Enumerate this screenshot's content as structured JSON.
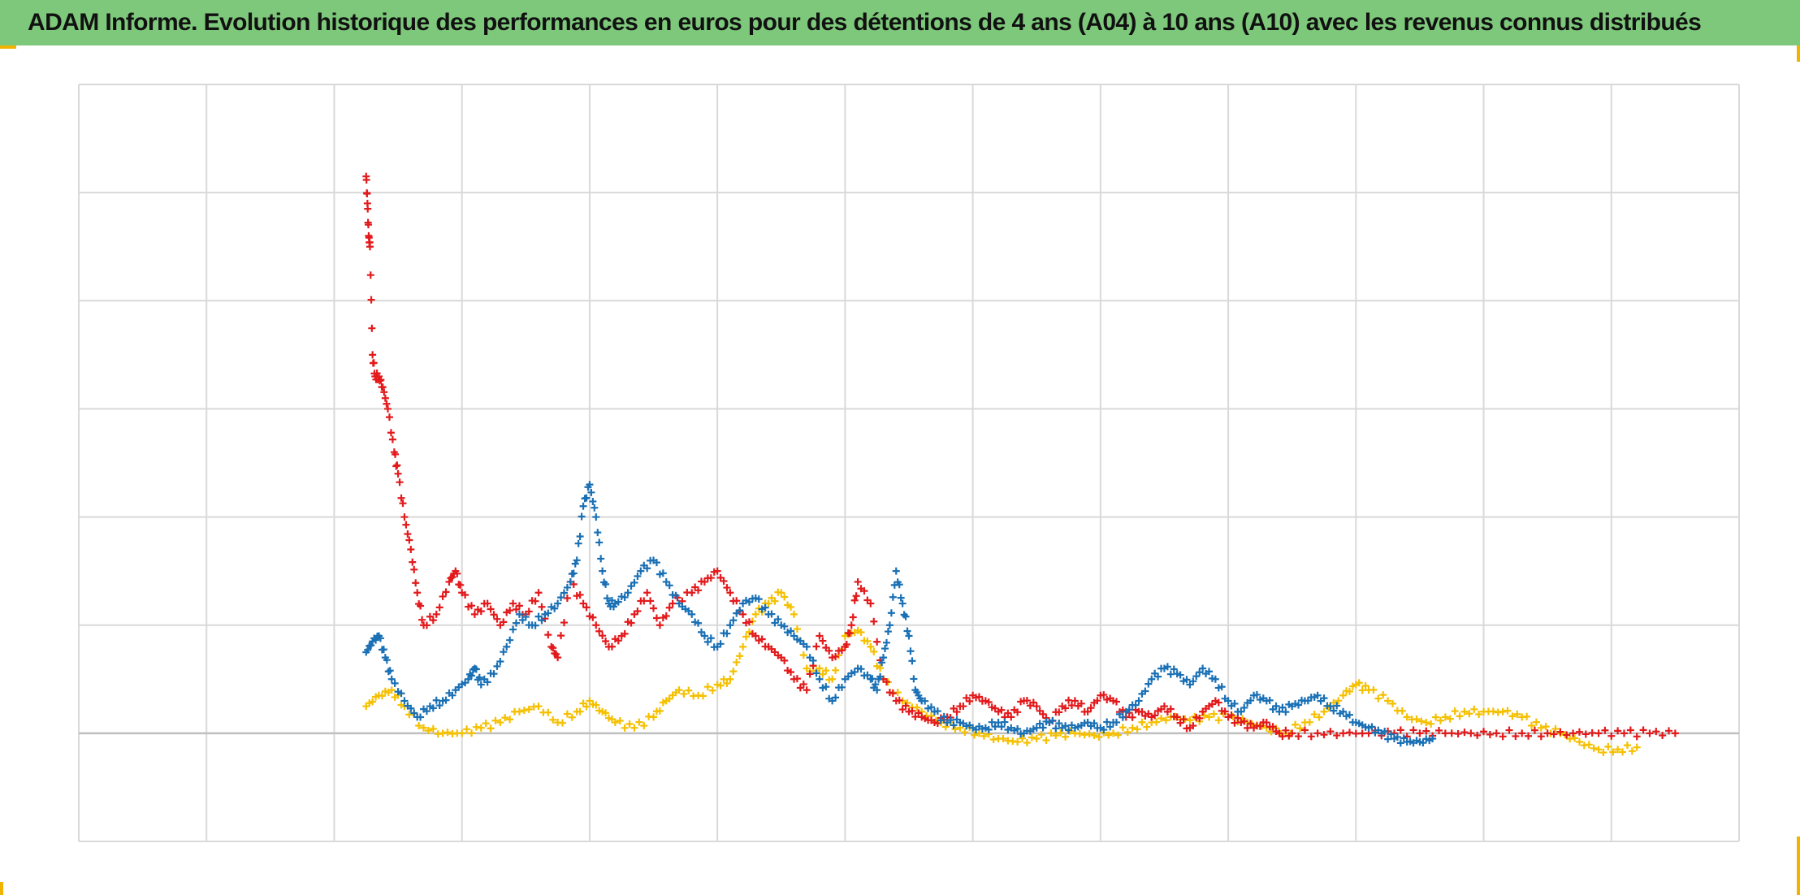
{
  "header": {
    "title": "ADAM Informe. Evolution historique des performances en euros pour des détentions de 4 ans (A04) à 10 ans (A10) avec les revenus connus distribués"
  },
  "colors": {
    "header_bg": "#7dc87a",
    "grid": "#d9d9d9",
    "zero_line": "#bfbfbf",
    "accent_corner": "#f0b400"
  },
  "chart_data": {
    "type": "scatter",
    "marker": "plus",
    "grid": true,
    "x_divisions": 13,
    "y_divisions": 7,
    "xlim": [
      0,
      13
    ],
    "ylim": [
      -1,
      6
    ],
    "zero_line": 0,
    "series": [
      {
        "color": "#f5c000",
        "points": [
          [
            2.25,
            0.25
          ],
          [
            2.35,
            0.35
          ],
          [
            2.45,
            0.4
          ],
          [
            2.55,
            0.25
          ],
          [
            2.7,
            0.05
          ],
          [
            2.85,
            0.0
          ],
          [
            3.0,
            0.0
          ],
          [
            3.15,
            0.05
          ],
          [
            3.3,
            0.1
          ],
          [
            3.45,
            0.2
          ],
          [
            3.6,
            0.25
          ],
          [
            3.75,
            0.1
          ],
          [
            3.9,
            0.2
          ],
          [
            4.0,
            0.3
          ],
          [
            4.1,
            0.2
          ],
          [
            4.2,
            0.1
          ],
          [
            4.35,
            0.05
          ],
          [
            4.5,
            0.15
          ],
          [
            4.6,
            0.3
          ],
          [
            4.7,
            0.4
          ],
          [
            4.85,
            0.35
          ],
          [
            5.0,
            0.45
          ],
          [
            5.1,
            0.5
          ],
          [
            5.2,
            0.8
          ],
          [
            5.3,
            1.1
          ],
          [
            5.4,
            1.2
          ],
          [
            5.5,
            1.3
          ],
          [
            5.6,
            1.1
          ],
          [
            5.7,
            0.6
          ],
          [
            5.8,
            0.6
          ],
          [
            5.9,
            0.5
          ],
          [
            6.0,
            0.9
          ],
          [
            6.1,
            0.95
          ],
          [
            6.2,
            0.8
          ],
          [
            6.3,
            0.5
          ],
          [
            6.45,
            0.3
          ],
          [
            6.6,
            0.2
          ],
          [
            6.75,
            0.1
          ],
          [
            6.9,
            0.05
          ],
          [
            7.05,
            0.0
          ],
          [
            7.2,
            -0.05
          ],
          [
            7.35,
            -0.08
          ],
          [
            7.5,
            -0.05
          ],
          [
            7.65,
            -0.02
          ],
          [
            7.8,
            0.0
          ],
          [
            7.95,
            -0.02
          ],
          [
            8.1,
            0.0
          ],
          [
            8.25,
            0.05
          ],
          [
            8.4,
            0.1
          ],
          [
            8.55,
            0.15
          ],
          [
            8.7,
            0.12
          ],
          [
            8.85,
            0.15
          ],
          [
            9.0,
            0.15
          ],
          [
            9.15,
            0.1
          ],
          [
            9.3,
            0.05
          ],
          [
            9.45,
            0.0
          ],
          [
            9.6,
            0.1
          ],
          [
            9.75,
            0.2
          ],
          [
            9.9,
            0.35
          ],
          [
            10.0,
            0.45
          ],
          [
            10.1,
            0.4
          ],
          [
            10.25,
            0.3
          ],
          [
            10.4,
            0.15
          ],
          [
            10.55,
            0.1
          ],
          [
            10.7,
            0.15
          ],
          [
            10.85,
            0.2
          ],
          [
            11.0,
            0.2
          ],
          [
            11.15,
            0.2
          ],
          [
            11.3,
            0.15
          ],
          [
            11.45,
            0.05
          ],
          [
            11.6,
            0.0
          ],
          [
            11.75,
            -0.08
          ],
          [
            11.9,
            -0.15
          ],
          [
            12.05,
            -0.15
          ],
          [
            12.2,
            -0.13
          ]
        ]
      },
      {
        "color": "#e31a1c",
        "points": [
          [
            2.25,
            5.15
          ],
          [
            2.26,
            4.9
          ],
          [
            2.27,
            4.6
          ],
          [
            2.28,
            4.5
          ],
          [
            2.3,
            3.5
          ],
          [
            2.32,
            3.3
          ],
          [
            2.35,
            3.3
          ],
          [
            2.38,
            3.2
          ],
          [
            2.42,
            3.0
          ],
          [
            2.47,
            2.6
          ],
          [
            2.5,
            2.4
          ],
          [
            2.55,
            2.0
          ],
          [
            2.6,
            1.7
          ],
          [
            2.65,
            1.3
          ],
          [
            2.7,
            1.0
          ],
          [
            2.8,
            1.1
          ],
          [
            2.9,
            1.4
          ],
          [
            2.95,
            1.5
          ],
          [
            3.0,
            1.3
          ],
          [
            3.1,
            1.1
          ],
          [
            3.2,
            1.2
          ],
          [
            3.3,
            1.0
          ],
          [
            3.4,
            1.2
          ],
          [
            3.5,
            1.1
          ],
          [
            3.6,
            1.3
          ],
          [
            3.7,
            0.8
          ],
          [
            3.75,
            0.7
          ],
          [
            3.85,
            1.4
          ],
          [
            3.95,
            1.2
          ],
          [
            4.05,
            1.0
          ],
          [
            4.15,
            0.8
          ],
          [
            4.25,
            0.9
          ],
          [
            4.35,
            1.1
          ],
          [
            4.45,
            1.3
          ],
          [
            4.55,
            1.0
          ],
          [
            4.65,
            1.2
          ],
          [
            4.8,
            1.3
          ],
          [
            4.9,
            1.4
          ],
          [
            5.0,
            1.5
          ],
          [
            5.1,
            1.3
          ],
          [
            5.2,
            1.1
          ],
          [
            5.3,
            0.9
          ],
          [
            5.4,
            0.8
          ],
          [
            5.5,
            0.7
          ],
          [
            5.6,
            0.5
          ],
          [
            5.7,
            0.4
          ],
          [
            5.8,
            0.9
          ],
          [
            5.9,
            0.7
          ],
          [
            6.0,
            0.8
          ],
          [
            6.05,
            1.0
          ],
          [
            6.1,
            1.4
          ],
          [
            6.2,
            1.2
          ],
          [
            6.3,
            0.5
          ],
          [
            6.4,
            0.3
          ],
          [
            6.5,
            0.2
          ],
          [
            6.6,
            0.15
          ],
          [
            6.7,
            0.1
          ],
          [
            6.8,
            0.15
          ],
          [
            6.9,
            0.25
          ],
          [
            7.0,
            0.35
          ],
          [
            7.1,
            0.3
          ],
          [
            7.2,
            0.2
          ],
          [
            7.3,
            0.15
          ],
          [
            7.4,
            0.3
          ],
          [
            7.5,
            0.25
          ],
          [
            7.6,
            0.1
          ],
          [
            7.7,
            0.25
          ],
          [
            7.8,
            0.3
          ],
          [
            7.9,
            0.2
          ],
          [
            8.0,
            0.35
          ],
          [
            8.1,
            0.3
          ],
          [
            8.2,
            0.15
          ],
          [
            8.3,
            0.2
          ],
          [
            8.4,
            0.15
          ],
          [
            8.5,
            0.25
          ],
          [
            8.6,
            0.15
          ],
          [
            8.7,
            0.05
          ],
          [
            8.8,
            0.2
          ],
          [
            8.9,
            0.3
          ],
          [
            9.0,
            0.15
          ],
          [
            9.1,
            0.1
          ],
          [
            9.2,
            0.05
          ],
          [
            9.3,
            0.1
          ],
          [
            9.4,
            0.0
          ],
          [
            9.5,
            0.0
          ],
          [
            9.7,
            0.0
          ],
          [
            9.9,
            0.0
          ],
          [
            10.1,
            0.0
          ],
          [
            10.3,
            0.0
          ],
          [
            10.5,
            0.0
          ],
          [
            10.7,
            0.0
          ],
          [
            10.9,
            0.0
          ],
          [
            11.1,
            0.0
          ],
          [
            11.3,
            0.0
          ],
          [
            11.5,
            0.0
          ],
          [
            11.7,
            0.0
          ],
          [
            11.9,
            0.0
          ],
          [
            12.1,
            0.0
          ],
          [
            12.3,
            0.0
          ],
          [
            12.5,
            0.0
          ]
        ]
      },
      {
        "color": "#1a70b5",
        "points": [
          [
            2.25,
            0.75
          ],
          [
            2.3,
            0.85
          ],
          [
            2.35,
            0.9
          ],
          [
            2.4,
            0.7
          ],
          [
            2.45,
            0.5
          ],
          [
            2.55,
            0.3
          ],
          [
            2.65,
            0.15
          ],
          [
            2.75,
            0.25
          ],
          [
            2.85,
            0.3
          ],
          [
            2.95,
            0.4
          ],
          [
            3.05,
            0.5
          ],
          [
            3.1,
            0.6
          ],
          [
            3.15,
            0.45
          ],
          [
            3.25,
            0.55
          ],
          [
            3.35,
            0.8
          ],
          [
            3.45,
            1.1
          ],
          [
            3.55,
            1.0
          ],
          [
            3.65,
            1.1
          ],
          [
            3.75,
            1.2
          ],
          [
            3.85,
            1.4
          ],
          [
            3.9,
            1.6
          ],
          [
            3.95,
            2.1
          ],
          [
            4.0,
            2.3
          ],
          [
            4.05,
            2.0
          ],
          [
            4.1,
            1.5
          ],
          [
            4.15,
            1.2
          ],
          [
            4.2,
            1.2
          ],
          [
            4.3,
            1.3
          ],
          [
            4.4,
            1.5
          ],
          [
            4.5,
            1.6
          ],
          [
            4.6,
            1.4
          ],
          [
            4.7,
            1.2
          ],
          [
            4.8,
            1.1
          ],
          [
            4.9,
            0.9
          ],
          [
            5.0,
            0.8
          ],
          [
            5.1,
            1.0
          ],
          [
            5.2,
            1.2
          ],
          [
            5.3,
            1.25
          ],
          [
            5.4,
            1.1
          ],
          [
            5.5,
            1.0
          ],
          [
            5.6,
            0.9
          ],
          [
            5.7,
            0.8
          ],
          [
            5.8,
            0.5
          ],
          [
            5.9,
            0.3
          ],
          [
            6.0,
            0.5
          ],
          [
            6.1,
            0.6
          ],
          [
            6.2,
            0.5
          ],
          [
            6.25,
            0.4
          ],
          [
            6.3,
            0.7
          ],
          [
            6.35,
            1.0
          ],
          [
            6.4,
            1.5
          ],
          [
            6.45,
            1.2
          ],
          [
            6.5,
            0.9
          ],
          [
            6.55,
            0.4
          ],
          [
            6.6,
            0.3
          ],
          [
            6.7,
            0.2
          ],
          [
            6.8,
            0.1
          ],
          [
            6.9,
            0.1
          ],
          [
            7.0,
            0.05
          ],
          [
            7.1,
            0.05
          ],
          [
            7.2,
            0.1
          ],
          [
            7.3,
            0.05
          ],
          [
            7.4,
            0.0
          ],
          [
            7.5,
            0.05
          ],
          [
            7.6,
            0.1
          ],
          [
            7.7,
            0.05
          ],
          [
            7.8,
            0.05
          ],
          [
            7.9,
            0.1
          ],
          [
            8.0,
            0.05
          ],
          [
            8.1,
            0.1
          ],
          [
            8.2,
            0.2
          ],
          [
            8.3,
            0.3
          ],
          [
            8.4,
            0.5
          ],
          [
            8.5,
            0.6
          ],
          [
            8.6,
            0.55
          ],
          [
            8.7,
            0.45
          ],
          [
            8.8,
            0.6
          ],
          [
            8.9,
            0.5
          ],
          [
            9.0,
            0.3
          ],
          [
            9.1,
            0.2
          ],
          [
            9.2,
            0.35
          ],
          [
            9.3,
            0.3
          ],
          [
            9.4,
            0.2
          ],
          [
            9.5,
            0.25
          ],
          [
            9.6,
            0.3
          ],
          [
            9.7,
            0.35
          ],
          [
            9.8,
            0.25
          ],
          [
            9.9,
            0.2
          ],
          [
            10.0,
            0.1
          ],
          [
            10.1,
            0.05
          ],
          [
            10.2,
            0.0
          ],
          [
            10.3,
            -0.05
          ],
          [
            10.4,
            -0.08
          ],
          [
            10.5,
            -0.08
          ],
          [
            10.6,
            -0.05
          ]
        ]
      }
    ]
  }
}
